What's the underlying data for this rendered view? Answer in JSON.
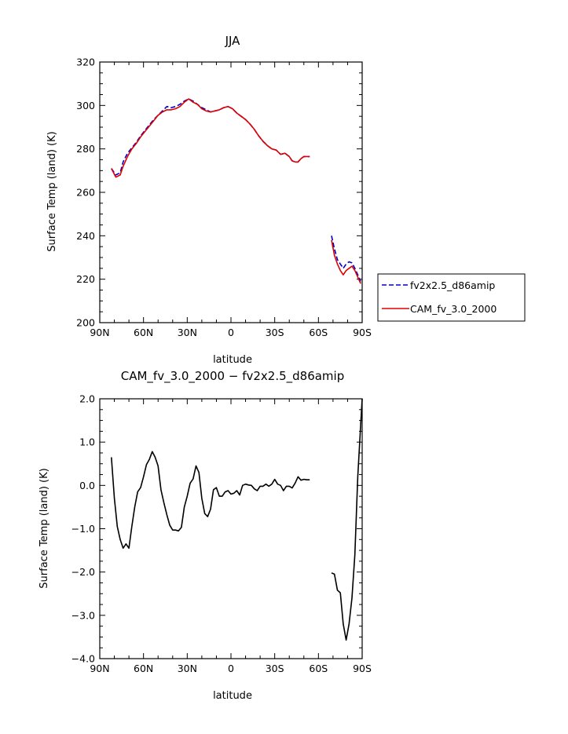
{
  "chart_data": [
    {
      "type": "line",
      "title": "JJA",
      "xlabel": "latitude",
      "ylabel": "Surface Temp (land) (K)",
      "xlim": [
        90,
        -90
      ],
      "ylim": [
        200,
        320
      ],
      "x_ticks": [
        90,
        60,
        30,
        0,
        -30,
        -60,
        -90
      ],
      "x_tick_labels": [
        "90N",
        "60N",
        "30N",
        "0",
        "30S",
        "60S",
        "90S"
      ],
      "y_ticks": [
        200,
        220,
        240,
        260,
        280,
        300,
        320
      ],
      "y_tick_labels": [
        "200",
        "220",
        "240",
        "260",
        "280",
        "300",
        "320"
      ],
      "legend_position": "right",
      "series": [
        {
          "name": "fv2x2.5_d86amip",
          "color": "#0000cc",
          "dash": "dashed",
          "segments": [
            {
              "x": [
                82,
                79,
                76,
                74,
                71,
                68,
                65,
                62,
                59,
                56,
                53,
                50,
                47,
                44,
                41,
                38,
                35,
                32,
                29,
                26,
                23,
                20,
                17,
                14,
                11,
                8,
                5,
                2,
                -1,
                -4,
                -7,
                -10,
                -13,
                -16,
                -19,
                -22,
                -25,
                -28,
                -31,
                -34,
                -37,
                -40,
                -42,
                -44,
                -46,
                -48,
                -50,
                -52,
                -54
              ],
              "y": [
                271,
                268,
                269,
                274,
                278,
                280.5,
                283,
                286,
                288.5,
                291,
                293.5,
                295.5,
                297.5,
                299.5,
                299,
                299.5,
                300.5,
                302,
                303,
                302,
                300.5,
                299,
                298,
                297,
                297.5,
                298,
                299,
                299.5,
                298.5,
                296.5,
                295,
                293.5,
                291.5,
                289,
                286,
                283.5,
                281.5,
                280,
                279.5,
                277.5,
                278,
                276.5,
                274.5,
                274,
                274,
                275.5,
                276.5,
                276.5,
                276.5
              ]
            },
            {
              "x": [
                -69,
                -71,
                -73,
                -75,
                -77,
                -79,
                -81,
                -83,
                -85,
                -87,
                -89
              ],
              "y": [
                240,
                234,
                229,
                227,
                225,
                227,
                228,
                227.5,
                225,
                222,
                219
              ]
            }
          ]
        },
        {
          "name": "CAM_fv_3.0_2000",
          "color": "#dd0000",
          "dash": "solid",
          "segments": [
            {
              "x": [
                82,
                79,
                76,
                74,
                71,
                68,
                65,
                62,
                59,
                56,
                53,
                50,
                47,
                44,
                41,
                38,
                35,
                32,
                29,
                26,
                23,
                20,
                17,
                14,
                11,
                8,
                5,
                2,
                -1,
                -4,
                -7,
                -10,
                -13,
                -16,
                -19,
                -22,
                -25,
                -28,
                -31,
                -34,
                -37,
                -40,
                -42,
                -44,
                -46,
                -48,
                -50,
                -52,
                -54
              ],
              "y": [
                271,
                267,
                268,
                272,
                276.5,
                280,
                282.5,
                285.5,
                288,
                290.5,
                293,
                295.5,
                297,
                298,
                298,
                298.5,
                299.5,
                301.5,
                303,
                301.5,
                300.5,
                298.5,
                297.5,
                297,
                297.5,
                298,
                299,
                299.5,
                298.5,
                296.5,
                295,
                293.5,
                291.5,
                289,
                286,
                283.5,
                281.5,
                280,
                279.5,
                277.5,
                278,
                276.5,
                274.5,
                274,
                274,
                275.5,
                276.5,
                276.5,
                276.5
              ]
            },
            {
              "x": [
                -69,
                -71,
                -73,
                -75,
                -77,
                -79,
                -81,
                -83,
                -85,
                -87,
                -89
              ],
              "y": [
                238,
                231,
                227,
                224,
                222,
                224,
                225,
                226,
                224,
                221,
                218
              ]
            }
          ]
        }
      ]
    },
    {
      "type": "line",
      "title": "CAM_fv_3.0_2000 − fv2x2.5_d86amip",
      "xlabel": "latitude",
      "ylabel": "Surface Temp (land) (K)",
      "xlim": [
        90,
        -90
      ],
      "ylim": [
        -4.0,
        2.0
      ],
      "x_ticks": [
        90,
        60,
        30,
        0,
        -30,
        -60,
        -90
      ],
      "x_tick_labels": [
        "90N",
        "60N",
        "30N",
        "0",
        "30S",
        "60S",
        "90S"
      ],
      "y_ticks": [
        -4.0,
        -3.0,
        -2.0,
        -1.0,
        0.0,
        1.0,
        2.0
      ],
      "y_tick_labels": [
        "−4.0",
        "−3.0",
        "−2.0",
        "−1.0",
        "0.0",
        "1.0",
        "2.0"
      ],
      "series": [
        {
          "color": "#000000",
          "dash": "solid",
          "segments": [
            {
              "x": [
                82,
                80,
                78,
                76,
                74,
                72,
                70,
                68,
                66,
                64,
                62,
                60,
                58,
                56,
                54,
                52,
                50,
                48,
                46,
                44,
                42,
                40,
                38,
                36,
                34,
                32,
                30,
                28,
                26,
                24,
                22,
                20,
                18,
                16,
                14,
                12,
                10,
                8,
                6,
                4,
                2,
                0,
                -2,
                -4,
                -6,
                -8,
                -10,
                -12,
                -14,
                -16,
                -18,
                -20,
                -22,
                -24,
                -26,
                -28,
                -30,
                -32,
                -34,
                -36,
                -38,
                -40,
                -42,
                -44,
                -46,
                -48,
                -50,
                -52,
                -54
              ],
              "y": [
                0.65,
                -0.3,
                -0.95,
                -1.25,
                -1.45,
                -1.35,
                -1.45,
                -0.95,
                -0.5,
                -0.15,
                -0.05,
                0.2,
                0.48,
                0.6,
                0.78,
                0.65,
                0.45,
                -0.1,
                -0.4,
                -0.68,
                -0.92,
                -1.03,
                -1.03,
                -1.05,
                -0.97,
                -0.5,
                -0.25,
                0.05,
                0.15,
                0.45,
                0.3,
                -0.3,
                -0.65,
                -0.72,
                -0.55,
                -0.1,
                -0.05,
                -0.25,
                -0.25,
                -0.15,
                -0.12,
                -0.2,
                -0.18,
                -0.12,
                -0.22,
                0.0,
                0.03,
                0.01,
                0.0,
                -0.08,
                -0.12,
                -0.02,
                -0.02,
                0.03,
                -0.02,
                0.03,
                0.14,
                0.03,
                0.0,
                -0.12,
                -0.02,
                -0.02,
                -0.06,
                0.05,
                0.2,
                0.12,
                0.14,
                0.13,
                0.13
              ]
            },
            {
              "x": [
                -69,
                -71,
                -73,
                -75,
                -77,
                -79,
                -81,
                -83,
                -85,
                -87,
                -89
              ],
              "y": [
                -2.02,
                -2.05,
                -2.42,
                -2.48,
                -3.2,
                -3.57,
                -3.2,
                -2.6,
                -1.6,
                0.2,
                1.4
              ]
            },
            {
              "x": [
                -89,
                -90
              ],
              "y": [
                1.4,
                2.0
              ]
            }
          ]
        }
      ]
    }
  ]
}
